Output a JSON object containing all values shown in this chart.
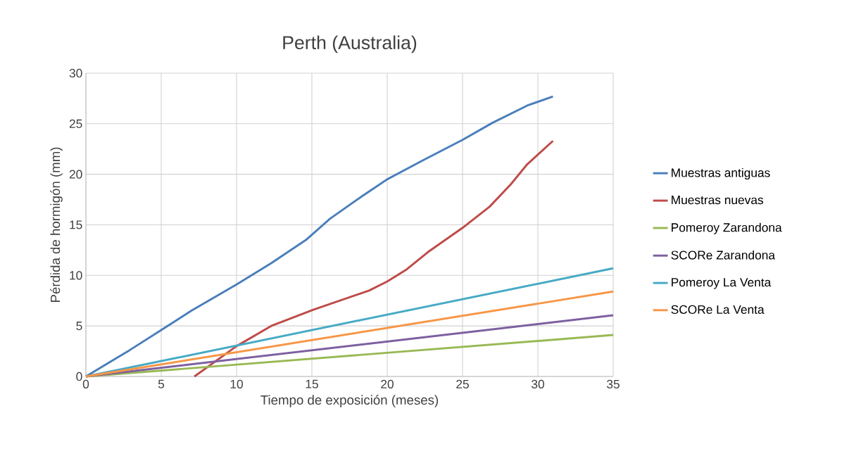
{
  "chart_data": {
    "type": "line",
    "title": "Perth (Australia)",
    "xlabel": "Tiempo de exposición (meses)",
    "ylabel": "Pérdida de hormigón (mm)",
    "xlim": [
      0,
      35
    ],
    "ylim": [
      0,
      30
    ],
    "xticks": [
      0,
      5,
      10,
      15,
      20,
      25,
      30,
      35
    ],
    "yticks": [
      0,
      5,
      10,
      15,
      20,
      25,
      30
    ],
    "grid": true,
    "legend": "right",
    "marker": "none",
    "line_style": "solid",
    "series": [
      {
        "name": "Muestras antiguas",
        "color": "#4a7ebb",
        "x": [
          0,
          2.9,
          5,
          7,
          10,
          12.3,
          14.6,
          16.2,
          18.3,
          20,
          22.4,
          25,
          27,
          29.3,
          31
        ],
        "values": [
          0,
          2.6,
          4.6,
          6.5,
          9.1,
          11.2,
          13.5,
          15.6,
          17.8,
          19.5,
          21.4,
          23.4,
          25.1,
          26.8,
          27.7
        ]
      },
      {
        "name": "Muestras nuevas",
        "color": "#be4b48",
        "x": [
          7.2,
          10,
          12.3,
          15.1,
          18.8,
          20,
          21.3,
          22.7,
          25,
          26.8,
          28.2,
          29.3,
          31
        ],
        "values": [
          0,
          3,
          5,
          6.6,
          8.5,
          9.4,
          10.6,
          12.3,
          14.7,
          16.8,
          19,
          21,
          23.3
        ]
      },
      {
        "name": "Pomeroy Zarandona",
        "color": "#98b954",
        "x": [
          0,
          35
        ],
        "values": [
          0,
          4.1
        ]
      },
      {
        "name": "SCORe Zarandona",
        "color": "#7d60a0",
        "x": [
          0,
          35
        ],
        "values": [
          0,
          6.05
        ]
      },
      {
        "name": "Pomeroy La Venta",
        "color": "#46aac5",
        "x": [
          0,
          35
        ],
        "values": [
          0,
          10.7
        ]
      },
      {
        "name": "SCORe La Venta",
        "color": "#f79646",
        "x": [
          0,
          35
        ],
        "values": [
          0,
          8.4
        ]
      }
    ]
  }
}
